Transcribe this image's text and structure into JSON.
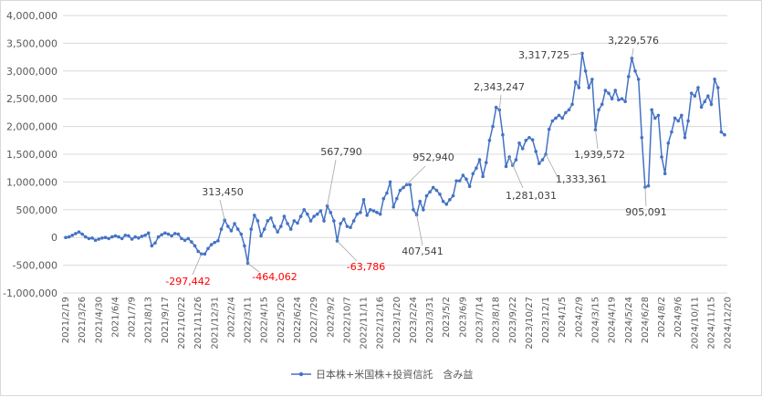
{
  "chart_data": {
    "type": "line",
    "title": "",
    "xlabel": "",
    "ylabel": "",
    "ylim": [
      -1000000,
      4000000
    ],
    "y_ticks": [
      {
        "value": 4000000,
        "label": "4,000,000"
      },
      {
        "value": 3500000,
        "label": "3,500,000"
      },
      {
        "value": 3000000,
        "label": "3,000,000"
      },
      {
        "value": 2500000,
        "label": "2,500,000"
      },
      {
        "value": 2000000,
        "label": "2,000,000"
      },
      {
        "value": 1500000,
        "label": "1,500,000"
      },
      {
        "value": 1000000,
        "label": "1,000,000"
      },
      {
        "value": 500000,
        "label": "500,000"
      },
      {
        "value": 0,
        "label": "0"
      },
      {
        "value": -500000,
        "label": "-500,000"
      },
      {
        "value": -1000000,
        "label": "-1,000,000"
      }
    ],
    "x_tick_labels": [
      "2021/2/19",
      "2021/3/26",
      "2021/4/30",
      "2021/6/4",
      "2021/7/9",
      "2021/8/13",
      "2021/9/17",
      "2021/10/22",
      "2021/11/26",
      "2021/12/31",
      "2022/2/4",
      "2022/3/11",
      "2022/4/15",
      "2022/5/20",
      "2022/6/24",
      "2022/7/29",
      "2022/9/2",
      "2022/10/7",
      "2022/11/11",
      "2022/12/16",
      "2023/1/20",
      "2023/2/24",
      "2023/3/31",
      "2023/5/2",
      "2023/6/9",
      "2023/7/14",
      "2023/8/18",
      "2023/9/22",
      "2023/10/27",
      "2023/12/1",
      "2024/1/5",
      "2024/2/9",
      "2024/3/15",
      "2024/4/19",
      "2024/5/24",
      "2024/6/28",
      "2024/8/2",
      "2024/9/6",
      "2024/10/11",
      "2024/11/15",
      "2024/12/20"
    ],
    "grid": true,
    "legend_position": "bottom",
    "series": [
      {
        "name": "日本株+米国株+投資信託　含み益",
        "color": "#4472C4",
        "values": [
          0,
          10000,
          40000,
          70000,
          100000,
          60000,
          10000,
          -20000,
          -10000,
          -50000,
          -30000,
          -10000,
          0,
          -20000,
          10000,
          30000,
          10000,
          -20000,
          40000,
          30000,
          -30000,
          10000,
          -10000,
          20000,
          40000,
          80000,
          -150000,
          -100000,
          10000,
          50000,
          80000,
          60000,
          30000,
          70000,
          60000,
          -20000,
          -50000,
          -20000,
          -80000,
          -150000,
          -250000,
          -297442,
          -297442,
          -200000,
          -130000,
          -90000,
          -60000,
          150000,
          313450,
          200000,
          120000,
          250000,
          150000,
          60000,
          -150000,
          -464062,
          150000,
          400000,
          300000,
          30000,
          150000,
          300000,
          350000,
          200000,
          100000,
          200000,
          380000,
          250000,
          150000,
          300000,
          260000,
          380000,
          500000,
          420000,
          300000,
          380000,
          420000,
          480000,
          300000,
          567790,
          450000,
          300000,
          -63786,
          250000,
          330000,
          200000,
          180000,
          300000,
          420000,
          450000,
          680000,
          400000,
          500000,
          480000,
          450000,
          420000,
          700000,
          800000,
          1000000,
          550000,
          700000,
          850000,
          900000,
          952940,
          950000,
          500000,
          407541,
          650000,
          500000,
          750000,
          820000,
          900000,
          850000,
          780000,
          650000,
          600000,
          680000,
          750000,
          1020000,
          1020000,
          1120000,
          1050000,
          920000,
          1150000,
          1250000,
          1400000,
          1100000,
          1350000,
          1750000,
          2000000,
          2343247,
          2300000,
          1850000,
          1281031,
          1450000,
          1300000,
          1400000,
          1700000,
          1600000,
          1750000,
          1800000,
          1760000,
          1550000,
          1333361,
          1400000,
          1500000,
          1950000,
          2100000,
          2150000,
          2200000,
          2150000,
          2250000,
          2300000,
          2400000,
          2800000,
          2700000,
          3317725,
          3000000,
          2700000,
          2850000,
          1939572,
          2300000,
          2400000,
          2650000,
          2600000,
          2500000,
          2650000,
          2480000,
          2500000,
          2450000,
          2900000,
          3229576,
          3000000,
          2850000,
          1800000,
          905091,
          930000,
          2300000,
          2150000,
          2200000,
          1450000,
          1150000,
          1700000,
          1900000,
          2150000,
          2100000,
          2200000,
          1800000,
          2100000,
          2600000,
          2550000,
          2700000,
          2350000,
          2450000,
          2550000,
          2400000,
          2850000,
          2700000,
          1900000,
          1850000
        ]
      }
    ],
    "annotations": [
      {
        "label": "-297,442",
        "color": "#FF0000"
      },
      {
        "label": "313,450",
        "color": "#404040"
      },
      {
        "label": "-464,062",
        "color": "#FF0000"
      },
      {
        "label": "567,790",
        "color": "#404040"
      },
      {
        "label": "-63,786",
        "color": "#FF0000"
      },
      {
        "label": "952,940",
        "color": "#404040"
      },
      {
        "label": "407,541",
        "color": "#404040"
      },
      {
        "label": "2,343,247",
        "color": "#404040"
      },
      {
        "label": "1,281,031",
        "color": "#404040"
      },
      {
        "label": "1,333,361",
        "color": "#404040"
      },
      {
        "label": "3,317,725",
        "color": "#404040"
      },
      {
        "label": "1,939,572",
        "color": "#404040"
      },
      {
        "label": "3,229,576",
        "color": "#404040"
      },
      {
        "label": "905,091",
        "color": "#404040"
      }
    ]
  }
}
